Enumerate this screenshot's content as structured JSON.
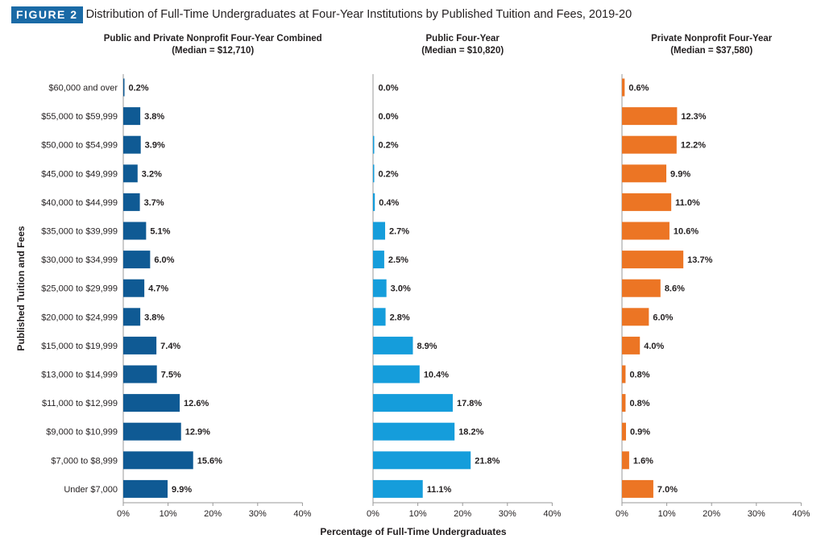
{
  "figure": {
    "tag": "FIGURE 2",
    "title": "Distribution of Full-Time Undergraduates at Four-Year Institutions by Published Tuition and Fees, 2019-20"
  },
  "colors": {
    "tag_background": "#1a6aa6",
    "combined": "#0f5a94",
    "public": "#159ddb",
    "private": "#ec7524",
    "axis": "#999999"
  },
  "chart_data": {
    "type": "bar",
    "orientation": "horizontal",
    "ylabel": "Published Tuition and Fees",
    "xlabel": "Percentage of Full-Time Undergraduates",
    "categories": [
      "$60,000 and over",
      "$55,000 to $59,999",
      "$50,000 to $54,999",
      "$45,000 to $49,999",
      "$40,000 to $44,999",
      "$35,000 to $39,999",
      "$30,000 to $34,999",
      "$25,000 to $29,999",
      "$20,000 to $24,999",
      "$15,000 to $19,999",
      "$13,000 to $14,999",
      "$11,000 to $12,999",
      "$9,000 to $10,999",
      "$7,000 to $8,999",
      "Under $7,000"
    ],
    "xlim": [
      0,
      40
    ],
    "ticks": [
      "0%",
      "10%",
      "20%",
      "30%",
      "40%"
    ],
    "grid": false,
    "panels": [
      {
        "title": "Public and Private Nonprofit Four-Year Combined",
        "subtitle": "(Median = $12,710)",
        "color": "#0f5a94",
        "values": [
          0.2,
          3.8,
          3.9,
          3.2,
          3.7,
          5.1,
          6.0,
          4.7,
          3.8,
          7.4,
          7.5,
          12.6,
          12.9,
          15.6,
          9.9
        ],
        "labels": [
          "0.2%",
          "3.8%",
          "3.9%",
          "3.2%",
          "3.7%",
          "5.1%",
          "6.0%",
          "4.7%",
          "3.8%",
          "7.4%",
          "7.5%",
          "12.6%",
          "12.9%",
          "15.6%",
          "9.9%"
        ]
      },
      {
        "title": "Public Four-Year",
        "subtitle": "(Median = $10,820)",
        "color": "#159ddb",
        "values": [
          0.0,
          0.0,
          0.2,
          0.2,
          0.4,
          2.7,
          2.5,
          3.0,
          2.8,
          8.9,
          10.4,
          17.8,
          18.2,
          21.8,
          11.1
        ],
        "labels": [
          "0.0%",
          "0.0%",
          "0.2%",
          "0.2%",
          "0.4%",
          "2.7%",
          "2.5%",
          "3.0%",
          "2.8%",
          "8.9%",
          "10.4%",
          "17.8%",
          "18.2%",
          "21.8%",
          "11.1%"
        ]
      },
      {
        "title": "Private Nonprofit Four-Year",
        "subtitle": "(Median = $37,580)",
        "color": "#ec7524",
        "values": [
          0.6,
          12.3,
          12.2,
          9.9,
          11.0,
          10.6,
          13.7,
          8.6,
          6.0,
          4.0,
          0.8,
          0.8,
          0.9,
          1.6,
          7.0
        ],
        "labels": [
          "0.6%",
          "12.3%",
          "12.2%",
          "9.9%",
          "11.0%",
          "10.6%",
          "13.7%",
          "8.6%",
          "6.0%",
          "4.0%",
          "0.8%",
          "0.8%",
          "0.9%",
          "1.6%",
          "7.0%"
        ]
      }
    ]
  }
}
